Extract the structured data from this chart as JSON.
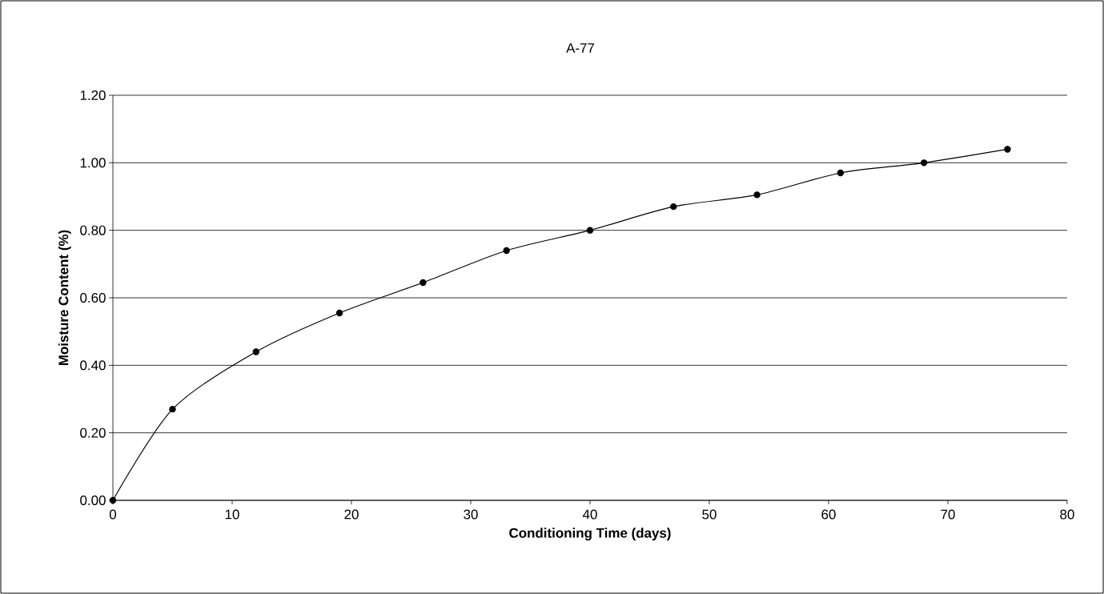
{
  "chart_data": {
    "type": "line",
    "title": "A-77",
    "xlabel": "Conditioning Time (days)",
    "ylabel": "Moisture Content (%)",
    "x": [
      0,
      5,
      12,
      19,
      26,
      33,
      40,
      47,
      54,
      61,
      68,
      75
    ],
    "series": [
      {
        "color": "#000000",
        "values": [
          0,
          0.27,
          0.44,
          0.555,
          0.645,
          0.74,
          0.8,
          0.87,
          0.905,
          0.97,
          1.0,
          1.04
        ]
      }
    ],
    "xlim": [
      0,
      80
    ],
    "xticks": [
      0,
      10,
      20,
      30,
      40,
      50,
      60,
      70,
      80
    ],
    "ylim": [
      0,
      1.2
    ],
    "yticks": [
      {
        "value": 0,
        "label": "0.00"
      },
      {
        "value": 0.2,
        "label": "0.20"
      },
      {
        "value": 0.4,
        "label": "0.40"
      },
      {
        "value": 0.6,
        "label": "0.60"
      },
      {
        "value": 0.8,
        "label": "0.80"
      },
      {
        "value": 1.0,
        "label": "1.00"
      },
      {
        "value": 1.2,
        "label": "1.20"
      }
    ],
    "grid": "y",
    "marker": "circle",
    "line_style": "solid"
  }
}
